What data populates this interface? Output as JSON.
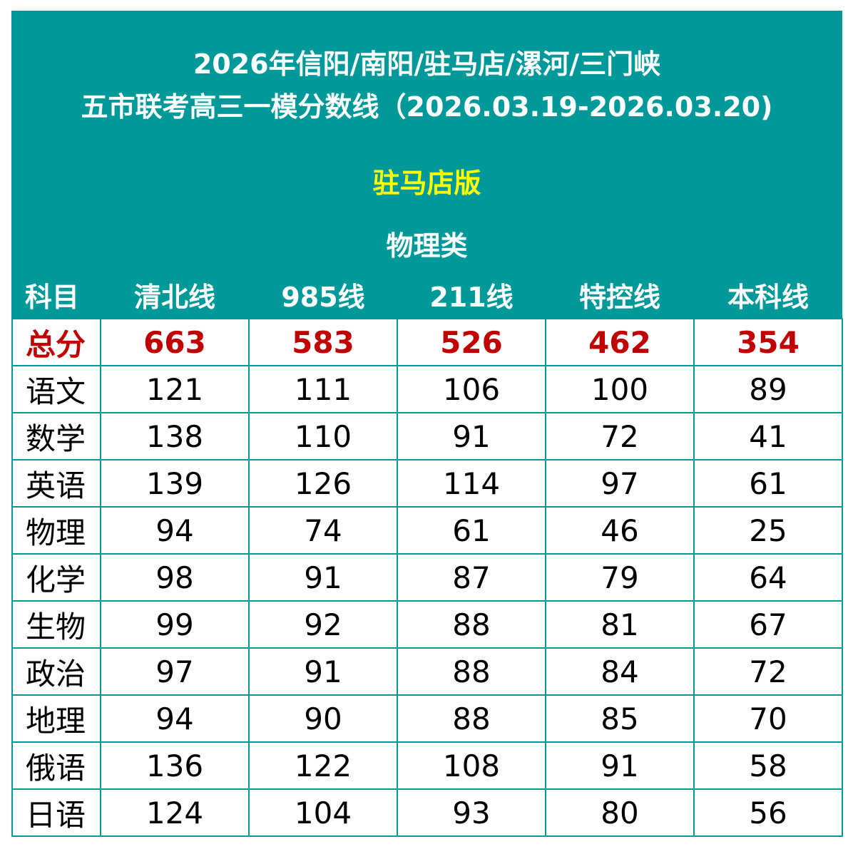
{
  "title_line1": "2026年信阳/南阳/驻马店/漯河/三门峡",
  "title_line2": "五市联考高三一模分数线（2026.03.19-2026.03.20)",
  "edition": "驻马店版",
  "category": "物理类",
  "headers": [
    "科目",
    "清北线",
    "985线",
    "211线",
    "特控线",
    "本科线"
  ],
  "rows": [
    [
      "总分",
      "663",
      "583",
      "526",
      "462",
      "354"
    ],
    [
      "语文",
      "121",
      "111",
      "106",
      "100",
      "89"
    ],
    [
      "数学",
      "138",
      "110",
      "91",
      "72",
      "41"
    ],
    [
      "英语",
      "139",
      "126",
      "114",
      "97",
      "61"
    ],
    [
      "物理",
      "94",
      "74",
      "61",
      "46",
      "25"
    ],
    [
      "化学",
      "98",
      "91",
      "87",
      "79",
      "64"
    ],
    [
      "生物",
      "99",
      "92",
      "88",
      "81",
      "67"
    ],
    [
      "政治",
      "97",
      "91",
      "88",
      "84",
      "72"
    ],
    [
      "地理",
      "94",
      "90",
      "88",
      "85",
      "70"
    ],
    [
      "俄语",
      "136",
      "122",
      "108",
      "91",
      "58"
    ],
    [
      "日语",
      "124",
      "104",
      "93",
      "80",
      "56"
    ]
  ],
  "colors": {
    "teal": "#009999",
    "total": "#c00000",
    "edition": "#ffff00"
  }
}
